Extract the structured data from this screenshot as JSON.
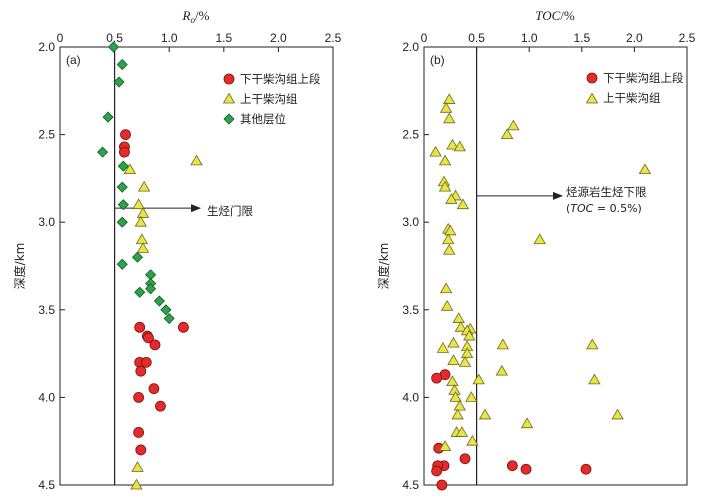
{
  "chart_data": [
    {
      "type": "scatter",
      "panel_label": "(a)",
      "title_main": "R",
      "title_sub": "o",
      "title_unit": "/%",
      "ylabel": "深度/km",
      "xlim": [
        0,
        2.5
      ],
      "ylim": [
        2.0,
        4.5
      ],
      "y_inverted": true,
      "x_ticks": [
        "0",
        "0.5",
        "1.0",
        "1.5",
        "2.0",
        "2.5"
      ],
      "y_ticks": [
        "2.0",
        "2.5",
        "3.0",
        "3.5",
        "4.0",
        "4.5"
      ],
      "threshold": {
        "x": 0.5,
        "label": "生烃门限",
        "arrow_depth": 2.92
      },
      "legend": [
        {
          "name": "下干柴沟组上段",
          "marker": "circle",
          "color": "#e42a2a"
        },
        {
          "name": "上干柴沟组",
          "marker": "triangle",
          "color": "#e8e44a"
        },
        {
          "name": "其他层位",
          "marker": "diamond",
          "color": "#2aa34a"
        }
      ],
      "series": [
        {
          "name": "下干柴沟组上段",
          "marker": "circle",
          "color": "#e42a2a",
          "points": [
            [
              0.6,
              2.5
            ],
            [
              0.59,
              2.57
            ],
            [
              0.59,
              2.6
            ],
            [
              0.73,
              3.6
            ],
            [
              0.8,
              3.65
            ],
            [
              0.81,
              3.66
            ],
            [
              0.87,
              3.7
            ],
            [
              0.73,
              3.8
            ],
            [
              0.79,
              3.8
            ],
            [
              0.74,
              3.85
            ],
            [
              0.86,
              3.95
            ],
            [
              0.92,
              4.05
            ],
            [
              0.72,
              4.0
            ],
            [
              0.72,
              4.2
            ],
            [
              0.74,
              4.3
            ],
            [
              1.13,
              3.6
            ]
          ]
        },
        {
          "name": "上干柴沟组",
          "marker": "triangle",
          "color": "#e8e44a",
          "points": [
            [
              1.25,
              2.65
            ],
            [
              0.64,
              2.7
            ],
            [
              0.77,
              2.8
            ],
            [
              0.72,
              2.9
            ],
            [
              0.76,
              2.95
            ],
            [
              0.74,
              3.0
            ],
            [
              0.75,
              3.1
            ],
            [
              0.76,
              3.15
            ],
            [
              0.71,
              4.4
            ],
            [
              0.7,
              4.5
            ]
          ]
        },
        {
          "name": "其他层位",
          "marker": "diamond",
          "color": "#2aa34a",
          "points": [
            [
              0.49,
              2.0
            ],
            [
              0.57,
              2.1
            ],
            [
              0.54,
              2.2
            ],
            [
              0.44,
              2.4
            ],
            [
              0.39,
              2.6
            ],
            [
              0.58,
              2.68
            ],
            [
              0.57,
              2.8
            ],
            [
              0.58,
              2.9
            ],
            [
              0.57,
              3.0
            ],
            [
              0.57,
              3.24
            ],
            [
              0.71,
              3.2
            ],
            [
              0.83,
              3.3
            ],
            [
              0.83,
              3.35
            ],
            [
              0.83,
              3.38
            ],
            [
              0.73,
              3.4
            ],
            [
              0.91,
              3.45
            ],
            [
              0.97,
              3.5
            ],
            [
              1.0,
              3.55
            ]
          ]
        }
      ]
    },
    {
      "type": "scatter",
      "panel_label": "(b)",
      "title_main": "TOC",
      "title_sub": "",
      "title_unit": "/%",
      "ylabel": "深度/km",
      "xlim": [
        0,
        2.5
      ],
      "ylim": [
        2.0,
        4.5
      ],
      "y_inverted": true,
      "x_ticks": [
        "0",
        "0.5",
        "1.0",
        "1.5",
        "2.0",
        "2.5"
      ],
      "y_ticks": [
        "2.0",
        "2.5",
        "3.0",
        "3.5",
        "4.0",
        "4.5"
      ],
      "threshold": {
        "x": 0.5,
        "label": "烃源岩生烃下限",
        "label_line2_prefix": "(",
        "label_line2_italic": "TOC",
        "label_line2_suffix": " = 0.5%)",
        "arrow_depth": 2.85
      },
      "legend": [
        {
          "name": "下干柴沟组上段",
          "marker": "circle",
          "color": "#e42a2a"
        },
        {
          "name": "上干柴沟组",
          "marker": "triangle",
          "color": "#e8e44a"
        }
      ],
      "series": [
        {
          "name": "下干柴沟组上段",
          "marker": "circle",
          "color": "#e42a2a",
          "points": [
            [
              0.2,
              3.87
            ],
            [
              0.12,
              3.89
            ],
            [
              0.14,
              4.29
            ],
            [
              0.19,
              4.39
            ],
            [
              0.13,
              4.39
            ],
            [
              0.12,
              4.42
            ],
            [
              0.17,
              4.5
            ],
            [
              0.39,
              4.35
            ],
            [
              0.84,
              4.39
            ],
            [
              0.97,
              4.41
            ],
            [
              1.54,
              4.41
            ]
          ]
        },
        {
          "name": "上干柴沟组",
          "marker": "triangle",
          "color": "#e8e44a",
          "points": [
            [
              0.24,
              2.3
            ],
            [
              0.21,
              2.35
            ],
            [
              0.24,
              2.41
            ],
            [
              0.85,
              2.45
            ],
            [
              0.79,
              2.5
            ],
            [
              0.27,
              2.56
            ],
            [
              0.34,
              2.57
            ],
            [
              0.11,
              2.6
            ],
            [
              0.2,
              2.65
            ],
            [
              2.1,
              2.7
            ],
            [
              0.19,
              2.77
            ],
            [
              0.2,
              2.8
            ],
            [
              0.3,
              2.85
            ],
            [
              0.26,
              2.87
            ],
            [
              0.37,
              2.9
            ],
            [
              0.23,
              3.04
            ],
            [
              0.25,
              3.05
            ],
            [
              0.23,
              3.1
            ],
            [
              1.1,
              3.1
            ],
            [
              0.24,
              3.16
            ],
            [
              0.21,
              3.38
            ],
            [
              0.22,
              3.48
            ],
            [
              0.33,
              3.55
            ],
            [
              0.35,
              3.6
            ],
            [
              0.44,
              3.61
            ],
            [
              0.41,
              3.62
            ],
            [
              0.43,
              3.65
            ],
            [
              0.28,
              3.69
            ],
            [
              0.18,
              3.72
            ],
            [
              0.41,
              3.71
            ],
            [
              0.75,
              3.7
            ],
            [
              1.6,
              3.7
            ],
            [
              0.41,
              3.75
            ],
            [
              0.39,
              3.8
            ],
            [
              0.28,
              3.79
            ],
            [
              0.52,
              3.9
            ],
            [
              0.27,
              3.91
            ],
            [
              0.74,
              3.85
            ],
            [
              1.62,
              3.9
            ],
            [
              0.29,
              3.96
            ],
            [
              0.3,
              4.0
            ],
            [
              0.45,
              4.0
            ],
            [
              0.34,
              4.05
            ],
            [
              0.32,
              4.1
            ],
            [
              0.58,
              4.1
            ],
            [
              1.84,
              4.1
            ],
            [
              0.98,
              4.15
            ],
            [
              0.31,
              4.2
            ],
            [
              0.36,
              4.2
            ],
            [
              0.46,
              4.25
            ],
            [
              0.2,
              4.28
            ]
          ]
        }
      ]
    }
  ]
}
